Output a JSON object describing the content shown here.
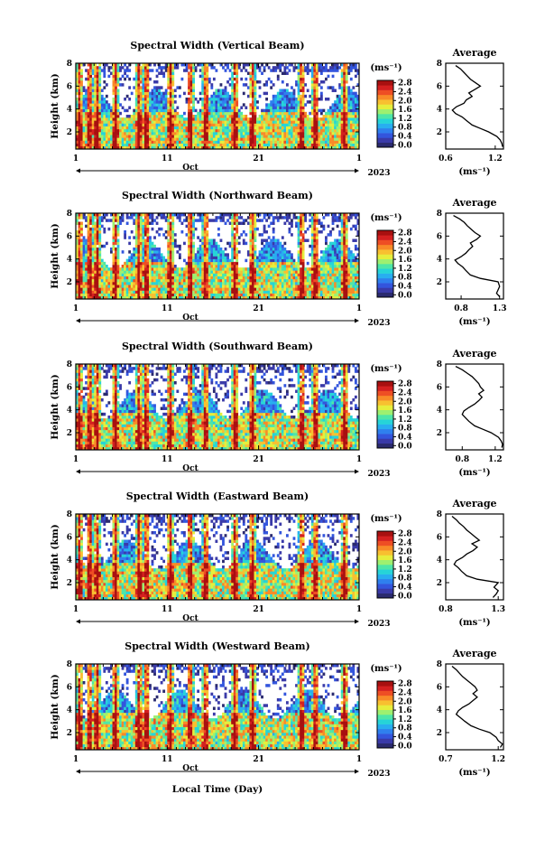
{
  "figure": {
    "xlabel": "Local Time (Day)",
    "ylabel": "Height (km)",
    "x_tick_labels": [
      "1",
      "11",
      "21",
      "1"
    ],
    "month_label": "Oct",
    "year_label": "2023",
    "unit_label": "(ms⁻¹)",
    "average_title": "Average"
  },
  "colors": {
    "scale": [
      "#2a2a6e",
      "#3a3aa8",
      "#3355dd",
      "#2f80ee",
      "#28aef0",
      "#26d4d8",
      "#4ee6a8",
      "#9ef070",
      "#e6ee3c",
      "#f8c030",
      "#f88a28",
      "#ee4e24",
      "#d42020",
      "#a81010"
    ]
  },
  "chart_data": [
    {
      "type": "heatmap",
      "title": "Spectral Width (Vertical Beam)",
      "x_range": [
        "2023-10-01",
        "2023-11-01"
      ],
      "x_ticks": [
        "2023-10-01",
        "2023-10-11",
        "2023-10-21",
        "2023-11-01"
      ],
      "ylim": [
        0.5,
        8
      ],
      "yticks": [
        2,
        4,
        6,
        8
      ],
      "colorbar": {
        "ticks": [
          0.0,
          0.4,
          0.8,
          1.2,
          1.6,
          2.0,
          2.4,
          2.8
        ],
        "tick_labels": [
          "0.0",
          "0.4",
          "0.8",
          "1.2",
          "1.6",
          "2.0",
          "2.4",
          "2.8"
        ]
      },
      "average": {
        "title": "Average",
        "xlim": [
          0.6,
          1.3
        ],
        "xtick_labels": [
          "0.6",
          "1.2"
        ],
        "xticks": [
          0.6,
          1.2
        ],
        "ylim": [
          0.5,
          8
        ],
        "yticks": [
          2,
          4,
          6,
          8
        ],
        "height_km": [
          0.7,
          1.0,
          1.3,
          1.6,
          2.0,
          2.3,
          2.6,
          3.0,
          3.3,
          3.6,
          3.9,
          4.2,
          4.5,
          4.8,
          5.1,
          5.4,
          5.7,
          6.0,
          6.3,
          6.6,
          6.9,
          7.2,
          7.5,
          7.8
        ],
        "width_ms": [
          1.3,
          1.28,
          1.26,
          1.22,
          1.12,
          1.02,
          0.92,
          0.85,
          0.8,
          0.72,
          0.68,
          0.73,
          0.82,
          0.85,
          0.92,
          0.88,
          0.95,
          1.02,
          0.96,
          0.9,
          0.86,
          0.82,
          0.78,
          0.72
        ]
      }
    },
    {
      "type": "heatmap",
      "title": "Spectral Width (Northward Beam)",
      "x_range": [
        "2023-10-01",
        "2023-11-01"
      ],
      "x_ticks": [
        "2023-10-01",
        "2023-10-11",
        "2023-10-21",
        "2023-11-01"
      ],
      "ylim": [
        0.5,
        8
      ],
      "yticks": [
        2,
        4,
        6,
        8
      ],
      "colorbar": {
        "ticks": [
          0.0,
          0.4,
          0.8,
          1.2,
          1.6,
          2.0,
          2.4,
          2.8
        ],
        "tick_labels": [
          "0.0",
          "0.4",
          "0.8",
          "1.2",
          "1.6",
          "2.0",
          "2.4",
          "2.8"
        ]
      },
      "average": {
        "title": "Average",
        "xlim": [
          0.6,
          1.35
        ],
        "xtick_labels": [
          "0.8",
          "1.3"
        ],
        "xticks": [
          0.8,
          1.3
        ],
        "ylim": [
          0.5,
          8
        ],
        "yticks": [
          2,
          4,
          6,
          8
        ],
        "height_km": [
          0.7,
          1.0,
          1.3,
          1.6,
          2.0,
          2.3,
          2.6,
          3.0,
          3.3,
          3.6,
          3.9,
          4.2,
          4.5,
          4.8,
          5.1,
          5.4,
          5.7,
          6.0,
          6.3,
          6.6,
          6.9,
          7.2,
          7.5,
          7.8
        ],
        "width_ms": [
          1.3,
          1.26,
          1.28,
          1.3,
          1.28,
          1.05,
          0.92,
          0.86,
          0.82,
          0.76,
          0.72,
          0.8,
          0.86,
          0.9,
          0.95,
          0.92,
          1.0,
          1.05,
          0.98,
          0.93,
          0.88,
          0.84,
          0.78,
          0.7
        ]
      }
    },
    {
      "type": "heatmap",
      "title": "Spectral Width (Southward Beam)",
      "x_range": [
        "2023-10-01",
        "2023-11-01"
      ],
      "x_ticks": [
        "2023-10-01",
        "2023-10-11",
        "2023-10-21",
        "2023-11-01"
      ],
      "ylim": [
        0.5,
        8
      ],
      "yticks": [
        2,
        4,
        6,
        8
      ],
      "colorbar": {
        "ticks": [
          0.0,
          0.4,
          0.8,
          1.2,
          1.6,
          2.0,
          2.4,
          2.8
        ],
        "tick_labels": [
          "0.0",
          "0.4",
          "0.8",
          "1.2",
          "1.6",
          "2.0",
          "2.4",
          "2.8"
        ]
      },
      "average": {
        "title": "Average",
        "xlim": [
          0.6,
          1.3
        ],
        "xtick_labels": [
          "0.8",
          "1.2"
        ],
        "xticks": [
          0.8,
          1.2
        ],
        "ylim": [
          0.5,
          8
        ],
        "yticks": [
          2,
          4,
          6,
          8
        ],
        "height_km": [
          0.7,
          1.0,
          1.3,
          1.6,
          2.0,
          2.3,
          2.6,
          3.0,
          3.3,
          3.6,
          3.9,
          4.2,
          4.5,
          4.8,
          5.1,
          5.4,
          5.7,
          6.0,
          6.3,
          6.6,
          6.9,
          7.2,
          7.5,
          7.8
        ],
        "width_ms": [
          1.28,
          1.3,
          1.27,
          1.24,
          1.15,
          1.05,
          0.95,
          0.88,
          0.84,
          0.8,
          0.82,
          0.88,
          0.95,
          1.0,
          1.04,
          1.0,
          1.06,
          1.02,
          1.0,
          0.96,
          0.92,
          0.86,
          0.8,
          0.72
        ]
      }
    },
    {
      "type": "heatmap",
      "title": "Spectral Width (Eastward Beam)",
      "x_range": [
        "2023-10-01",
        "2023-11-01"
      ],
      "x_ticks": [
        "2023-10-01",
        "2023-10-11",
        "2023-10-21",
        "2023-11-01"
      ],
      "ylim": [
        0.5,
        8
      ],
      "yticks": [
        2,
        4,
        6,
        8
      ],
      "colorbar": {
        "ticks": [
          0.0,
          0.4,
          0.8,
          1.2,
          1.6,
          2.0,
          2.4,
          2.8
        ],
        "tick_labels": [
          "0.0",
          "0.4",
          "0.8",
          "1.2",
          "1.6",
          "2.0",
          "2.4",
          "2.8"
        ]
      },
      "average": {
        "title": "Average",
        "xlim": [
          0.8,
          1.35
        ],
        "xtick_labels": [
          "0.8",
          "1.3"
        ],
        "xticks": [
          0.8,
          1.3
        ],
        "ylim": [
          0.5,
          8
        ],
        "yticks": [
          2,
          4,
          6,
          8
        ],
        "height_km": [
          0.7,
          1.0,
          1.3,
          1.6,
          2.0,
          2.3,
          2.6,
          3.0,
          3.3,
          3.6,
          3.9,
          4.2,
          4.5,
          4.8,
          5.1,
          5.4,
          5.7,
          6.0,
          6.3,
          6.6,
          6.9,
          7.2,
          7.5,
          7.8
        ],
        "width_ms": [
          1.25,
          1.28,
          1.3,
          1.26,
          1.3,
          1.1,
          1.0,
          0.95,
          0.92,
          0.88,
          0.9,
          0.96,
          1.0,
          1.06,
          1.1,
          1.05,
          1.12,
          1.08,
          1.04,
          1.0,
          0.97,
          0.93,
          0.9,
          0.86
        ]
      }
    },
    {
      "type": "heatmap",
      "title": "Spectral Width (Westward Beam)",
      "x_range": [
        "2023-10-01",
        "2023-11-01"
      ],
      "x_ticks": [
        "2023-10-01",
        "2023-10-11",
        "2023-10-21",
        "2023-11-01"
      ],
      "ylim": [
        0.5,
        8
      ],
      "yticks": [
        2,
        4,
        6,
        8
      ],
      "colorbar": {
        "ticks": [
          0.0,
          0.4,
          0.8,
          1.2,
          1.6,
          2.0,
          2.4,
          2.8
        ],
        "tick_labels": [
          "0.0",
          "0.4",
          "0.8",
          "1.2",
          "1.6",
          "2.0",
          "2.4",
          "2.8"
        ]
      },
      "average": {
        "title": "Average",
        "xlim": [
          0.7,
          1.25
        ],
        "xtick_labels": [
          "0.7",
          "1.2"
        ],
        "xticks": [
          0.7,
          1.2
        ],
        "ylim": [
          0.5,
          8
        ],
        "yticks": [
          2,
          4,
          6,
          8
        ],
        "height_km": [
          0.7,
          1.0,
          1.3,
          1.6,
          2.0,
          2.3,
          2.6,
          3.0,
          3.3,
          3.6,
          3.9,
          4.2,
          4.5,
          4.8,
          5.1,
          5.4,
          5.7,
          6.0,
          6.3,
          6.6,
          6.9,
          7.2,
          7.5,
          7.8
        ],
        "width_ms": [
          1.22,
          1.24,
          1.2,
          1.18,
          1.12,
          1.02,
          0.94,
          0.88,
          0.84,
          0.8,
          0.82,
          0.86,
          0.92,
          0.96,
          1.0,
          0.96,
          1.0,
          0.98,
          0.94,
          0.9,
          0.86,
          0.83,
          0.8,
          0.76
        ]
      }
    }
  ]
}
